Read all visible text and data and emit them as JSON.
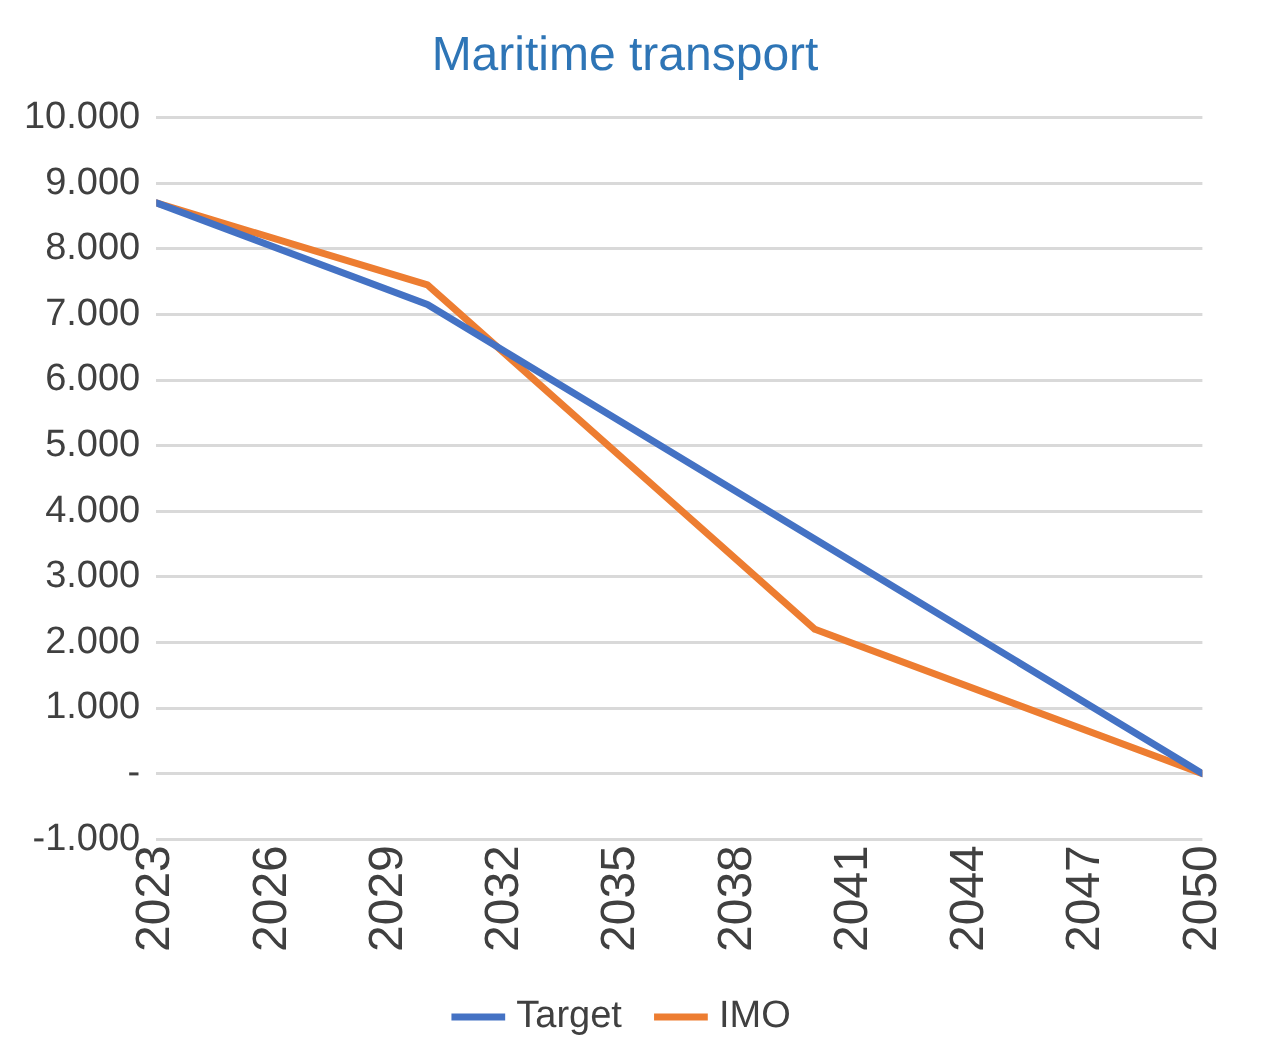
{
  "chart_data": {
    "type": "line",
    "title": "Maritime transport",
    "xlim": [
      2023,
      2050
    ],
    "xticks": [
      2023,
      2026,
      2029,
      2032,
      2035,
      2038,
      2041,
      2044,
      2047,
      2050
    ],
    "ylim": [
      -1000,
      10000
    ],
    "yticks": [
      {
        "value": -1000,
        "label": "-1.000"
      },
      {
        "value": 0,
        "label": "-"
      },
      {
        "value": 1000,
        "label": "1.000"
      },
      {
        "value": 2000,
        "label": "2.000"
      },
      {
        "value": 3000,
        "label": "3.000"
      },
      {
        "value": 4000,
        "label": "4.000"
      },
      {
        "value": 5000,
        "label": "5.000"
      },
      {
        "value": 6000,
        "label": "6.000"
      },
      {
        "value": 7000,
        "label": "7.000"
      },
      {
        "value": 8000,
        "label": "8.000"
      },
      {
        "value": 9000,
        "label": "9.000"
      },
      {
        "value": 10000,
        "label": "10.000"
      }
    ],
    "grid": "y",
    "legend": "bottom",
    "marker": "none",
    "line_style": "solid",
    "series": [
      {
        "name": "Target",
        "color": "#4472c4",
        "x": [
          2023,
          2030,
          2050
        ],
        "values": [
          8700,
          7150,
          0
        ]
      },
      {
        "name": "IMO",
        "color": "#ed7d31",
        "x": [
          2023,
          2030,
          2040,
          2050
        ],
        "values": [
          8700,
          7450,
          2200,
          0
        ]
      }
    ]
  }
}
